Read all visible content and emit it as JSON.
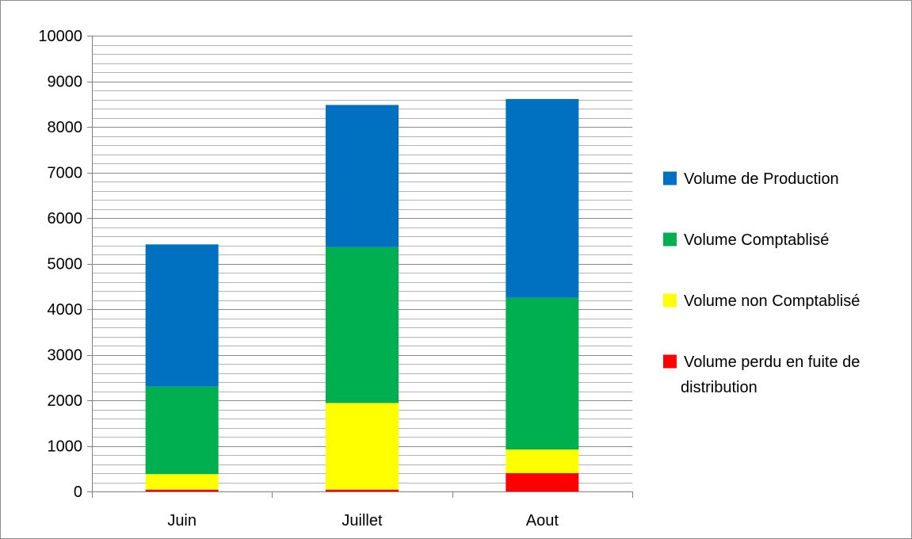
{
  "chart_data": {
    "type": "bar",
    "stacked": true,
    "categories": [
      "Juin",
      "Juillet",
      "Aout"
    ],
    "series": [
      {
        "name": "Volume perdu en fuite de distribution",
        "color": "#ff0000",
        "values": [
          40,
          40,
          400
        ]
      },
      {
        "name": "Volume non Comptablisé",
        "color": "#ffff00",
        "values": [
          340,
          1900,
          520
        ]
      },
      {
        "name": "Volume Comptablisé",
        "color": "#00b050",
        "values": [
          1920,
          3420,
          3330
        ]
      },
      {
        "name": "Volume de Production",
        "color": "#0070c0",
        "values": [
          3120,
          3120,
          4360
        ]
      }
    ],
    "legend_order": [
      "Volume de Production",
      "Volume Comptablisé",
      "Volume non Comptablisé",
      "Volume perdu en fuite de distribution"
    ],
    "ylim": [
      0,
      10000
    ],
    "y_major_ticks": [
      0,
      1000,
      2000,
      3000,
      4000,
      5000,
      6000,
      7000,
      8000,
      9000,
      10000
    ],
    "y_minor_step": 200,
    "grid": true,
    "legend_position": "right",
    "title": "",
    "xlabel": "",
    "ylabel": ""
  }
}
